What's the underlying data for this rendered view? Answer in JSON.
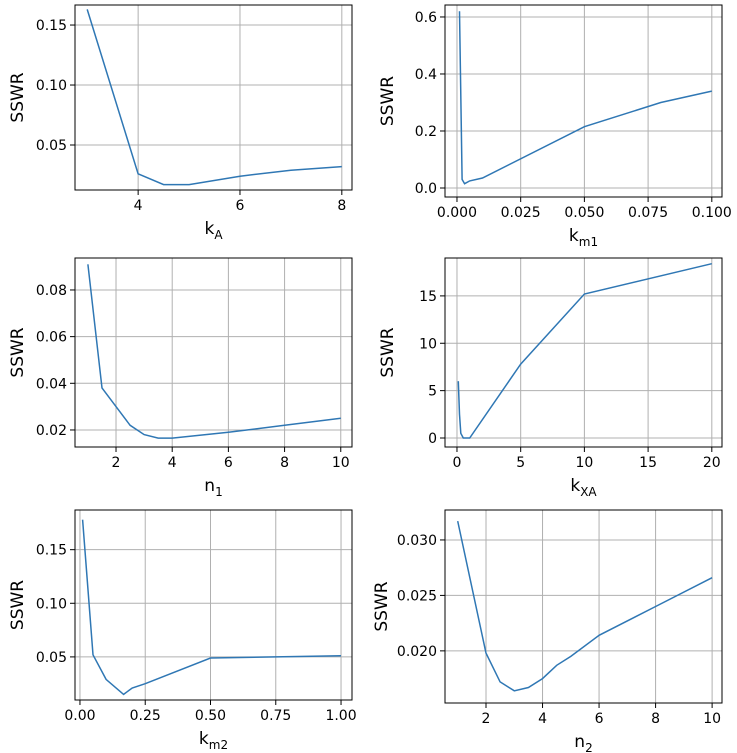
{
  "chart_data": [
    {
      "type": "line",
      "ylabel": "SSWR",
      "xlabel": {
        "main": "k",
        "sub": "A"
      },
      "xlim": [
        2.76,
        8.2
      ],
      "ylim": [
        0.0125,
        0.1667
      ],
      "xticks": [
        4,
        6,
        8
      ],
      "xtick_labels": [
        "4",
        "6",
        "8"
      ],
      "yticks": [
        0.05,
        0.1,
        0.15
      ],
      "ytick_labels": [
        "0.05",
        "0.10",
        "0.15"
      ],
      "x": [
        3,
        4,
        4.5,
        5,
        6,
        7,
        8
      ],
      "y": [
        0.163,
        0.026,
        0.017,
        0.017,
        0.024,
        0.029,
        0.032
      ],
      "grid": true
    },
    {
      "type": "line",
      "ylabel": "SSWR",
      "xlabel": {
        "main": "k",
        "sub": "m1"
      },
      "xlim": [
        -0.0047,
        0.104
      ],
      "ylim": [
        -0.0316,
        0.642
      ],
      "xticks": [
        0,
        0.025,
        0.05,
        0.075,
        0.1
      ],
      "xtick_labels": [
        "0.000",
        "0.025",
        "0.050",
        "0.075",
        "0.100"
      ],
      "yticks": [
        0,
        0.2,
        0.4,
        0.6
      ],
      "ytick_labels": [
        "0.0",
        "0.2",
        "0.4",
        "0.6"
      ],
      "x": [
        0.001,
        0.002,
        0.003,
        0.005,
        0.01,
        0.05,
        0.08,
        0.1
      ],
      "y": [
        0.62,
        0.03,
        0.015,
        0.025,
        0.035,
        0.215,
        0.3,
        0.34
      ],
      "grid": true
    },
    {
      "type": "line",
      "ylabel": "SSWR",
      "xlabel": {
        "main": "n",
        "sub": "1"
      },
      "xlim": [
        0.54,
        10.4
      ],
      "ylim": [
        0.0127,
        0.0937
      ],
      "xticks": [
        2,
        4,
        6,
        8,
        10
      ],
      "xtick_labels": [
        "2",
        "4",
        "6",
        "8",
        "10"
      ],
      "yticks": [
        0.02,
        0.04,
        0.06,
        0.08
      ],
      "ytick_labels": [
        "0.02",
        "0.04",
        "0.06",
        "0.08"
      ],
      "x": [
        1,
        1.5,
        2,
        2.5,
        3,
        3.5,
        4,
        6,
        8,
        10
      ],
      "y": [
        0.091,
        0.038,
        0.03,
        0.022,
        0.018,
        0.0165,
        0.0165,
        0.019,
        0.022,
        0.025
      ],
      "grid": true
    },
    {
      "type": "line",
      "ylabel": "SSWR",
      "xlabel": {
        "main": "k",
        "sub": "XA"
      },
      "xlim": [
        -0.94,
        20.8
      ],
      "ylim": [
        -0.95,
        19.0
      ],
      "xticks": [
        0,
        5,
        10,
        15,
        20
      ],
      "xtick_labels": [
        "0",
        "5",
        "10",
        "15",
        "20"
      ],
      "yticks": [
        0,
        5,
        10,
        15
      ],
      "ytick_labels": [
        "0",
        "5",
        "10",
        "15"
      ],
      "x": [
        0.1,
        0.2,
        0.3,
        0.5,
        1,
        5,
        10,
        20
      ],
      "y": [
        6,
        2.5,
        0.5,
        0,
        0,
        7.8,
        15.2,
        18.4
      ],
      "grid": true
    },
    {
      "type": "line",
      "ylabel": "SSWR",
      "xlabel": {
        "main": "k",
        "sub": "m2"
      },
      "xlim": [
        -0.019,
        1.042
      ],
      "ylim": [
        0.0098,
        0.187
      ],
      "xticks": [
        0,
        0.25,
        0.5,
        0.75,
        1
      ],
      "xtick_labels": [
        "0.00",
        "0.25",
        "0.50",
        "0.75",
        "1.00"
      ],
      "yticks": [
        0.05,
        0.1,
        0.15
      ],
      "ytick_labels": [
        "0.05",
        "0.10",
        "0.15"
      ],
      "x": [
        0.01,
        0.05,
        0.1,
        0.167,
        0.2,
        0.25,
        0.5,
        1
      ],
      "y": [
        0.178,
        0.052,
        0.029,
        0.015,
        0.021,
        0.025,
        0.049,
        0.051
      ],
      "grid": true
    },
    {
      "type": "line",
      "ylabel": "SSWR",
      "xlabel": {
        "main": "n",
        "sub": "2"
      },
      "xlim": [
        0.549,
        10.35
      ],
      "ylim": [
        0.0153,
        0.0327
      ],
      "xticks": [
        2,
        4,
        6,
        8,
        10
      ],
      "xtick_labels": [
        "2",
        "4",
        "6",
        "8",
        "10"
      ],
      "yticks": [
        0.02,
        0.025,
        0.03
      ],
      "ytick_labels": [
        "0.020",
        "0.025",
        "0.030"
      ],
      "x": [
        1,
        2,
        2.5,
        3,
        3.5,
        4,
        4.5,
        5,
        6,
        8,
        10
      ],
      "y": [
        0.0317,
        0.0198,
        0.0172,
        0.0164,
        0.0167,
        0.0175,
        0.0187,
        0.0195,
        0.0214,
        0.024,
        0.0266
      ],
      "grid": true
    }
  ],
  "colors": {
    "line": "#2f77b4",
    "grid": "#b0b0b0",
    "axis": "#000000"
  }
}
